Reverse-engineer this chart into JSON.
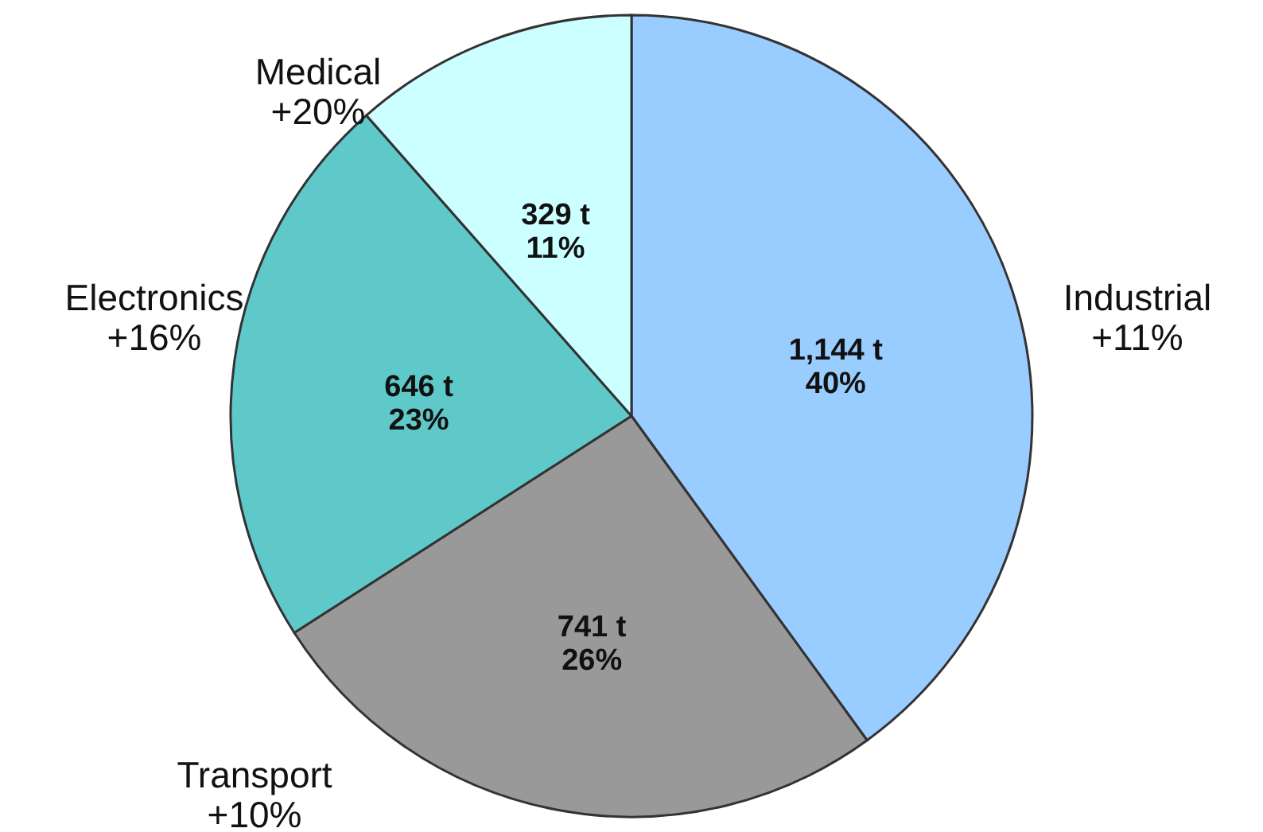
{
  "chart_data": {
    "type": "pie",
    "categories": [
      "Industrial",
      "Transport",
      "Electronics",
      "Medical"
    ],
    "values": [
      1144,
      741,
      646,
      329
    ],
    "colors": [
      "#99ccff",
      "#999999",
      "#5fc9c9",
      "#ccffff"
    ],
    "value_labels": [
      "1,144 t\n40%",
      "741 t\n26%",
      "646 t\n23%",
      "329 t\n11%"
    ],
    "annotations": [
      {
        "text": "+11%",
        "x": "Industrial"
      },
      {
        "text": "+10%",
        "x": "Transport"
      },
      {
        "text": "+16%",
        "x": "Electronics"
      },
      {
        "text": "+20%",
        "x": "Medical"
      }
    ]
  }
}
